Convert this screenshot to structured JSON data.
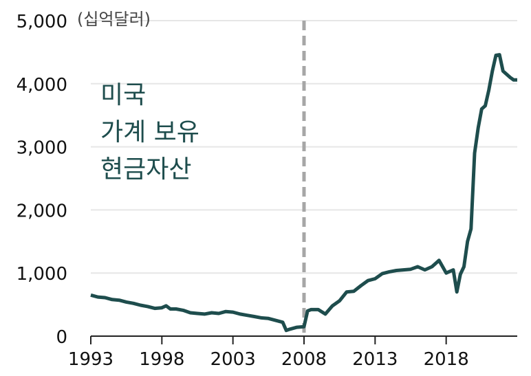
{
  "chart_data": {
    "type": "line",
    "title": "",
    "unit_label": "(십억달러)",
    "xlabel": "",
    "ylabel": "",
    "annotation_lines": [
      "미국",
      "가계 보유",
      "현금자산"
    ],
    "x_tick_labels": [
      "1993",
      "1998",
      "2003",
      "2008",
      "2013",
      "2018"
    ],
    "y_tick_labels": [
      "0",
      "1,000",
      "2,000",
      "3,000",
      "4,000",
      "5,000"
    ],
    "xlim": [
      1993,
      2023
    ],
    "ylim": [
      0,
      5000
    ],
    "y_ticks": [
      0,
      1000,
      2000,
      3000,
      4000,
      5000
    ],
    "x_ticks": [
      1993,
      1998,
      2003,
      2008,
      2013,
      2018
    ],
    "grid": true,
    "vline_x": 2008,
    "colors": {
      "line": "#1e4d4d",
      "annotation": "#1e4d4d",
      "vline": "#a6a6a6",
      "grid": "#e6e6e6"
    },
    "series": [
      {
        "x": [
          1993.0,
          1993.5,
          1994.0,
          1994.5,
          1995.0,
          1995.5,
          1996.0,
          1996.5,
          1997.0,
          1997.5,
          1998.0,
          1998.3,
          1998.6,
          1999.0,
          1999.5,
          2000.0,
          2000.5,
          2001.0,
          2001.5,
          2002.0,
          2002.5,
          2003.0,
          2003.5,
          2004.0,
          2004.5,
          2005.0,
          2005.5,
          2006.0,
          2006.5,
          2006.75,
          2007.0,
          2007.5,
          2008.0,
          2008.25,
          2008.5,
          2009.0,
          2009.5,
          2010.0,
          2010.5,
          2011.0,
          2011.5,
          2012.0,
          2012.5,
          2013.0,
          2013.5,
          2014.0,
          2014.5,
          2015.0,
          2015.5,
          2016.0,
          2016.5,
          2017.0,
          2017.5,
          2018.0,
          2018.5,
          2018.75,
          2019.0,
          2019.25,
          2019.5,
          2019.75,
          2020.0,
          2020.25,
          2020.5,
          2020.75,
          2021.0,
          2021.25,
          2021.5,
          2021.75,
          2022.0,
          2022.25,
          2022.5,
          2022.75,
          2023.0
        ],
        "values": [
          650,
          620,
          610,
          580,
          570,
          540,
          520,
          490,
          470,
          440,
          450,
          480,
          430,
          430,
          410,
          370,
          360,
          350,
          370,
          360,
          390,
          380,
          350,
          330,
          310,
          290,
          280,
          250,
          220,
          90,
          110,
          140,
          150,
          400,
          420,
          420,
          350,
          480,
          560,
          700,
          710,
          800,
          880,
          910,
          990,
          1020,
          1040,
          1050,
          1060,
          1100,
          1050,
          1100,
          1200,
          1000,
          1050,
          700,
          980,
          1100,
          1500,
          1700,
          2900,
          3300,
          3600,
          3650,
          3900,
          4200,
          4450,
          4460,
          4200,
          4150,
          4100,
          4060,
          4060
        ]
      }
    ]
  }
}
